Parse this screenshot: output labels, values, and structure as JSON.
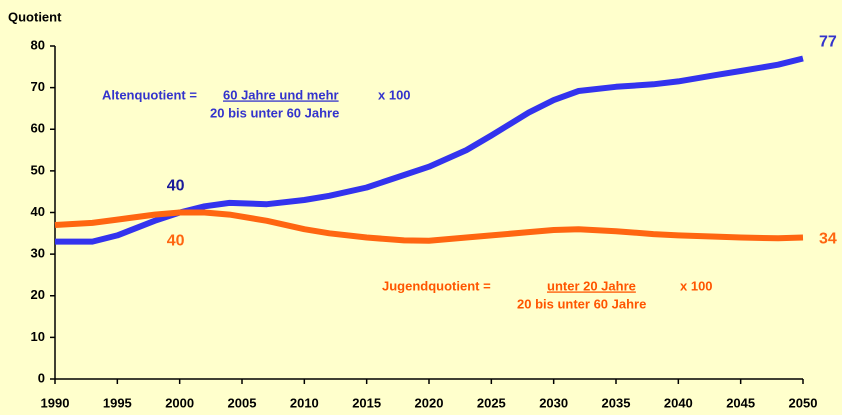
{
  "chart_data": {
    "type": "line",
    "y_axis_label": "Quotient",
    "x": [
      1990,
      1993,
      1995,
      1998,
      2000,
      2002,
      2004,
      2007,
      2010,
      2012,
      2015,
      2018,
      2020,
      2023,
      2025,
      2028,
      2030,
      2032,
      2035,
      2038,
      2040,
      2043,
      2045,
      2048,
      2050
    ],
    "series": [
      {
        "name": "Altenquotient",
        "color": "#3333ee",
        "values": [
          33,
          33,
          34.5,
          38,
          40,
          41.5,
          42.3,
          42,
          43,
          44,
          46,
          49,
          51,
          55,
          58.5,
          64,
          67,
          69.2,
          70.2,
          70.8,
          71.5,
          73,
          74,
          75.5,
          77
        ]
      },
      {
        "name": "Jugendquotient",
        "color": "#ff6611",
        "values": [
          37,
          37.5,
          38.3,
          39.5,
          40,
          40,
          39.5,
          38,
          36,
          35,
          34,
          33.3,
          33.2,
          34,
          34.5,
          35.3,
          35.8,
          36,
          35.5,
          34.8,
          34.5,
          34.2,
          34,
          33.8,
          34
        ]
      }
    ],
    "formulas": [
      {
        "name": "Altenquotient =",
        "numerator": "60 Jahre und mehr",
        "factor": "x 100",
        "denominator": "20 bis unter 60 Jahre"
      },
      {
        "name": "Jugendquotient =",
        "numerator": "unter 20 Jahre",
        "factor": "x 100",
        "denominator": "20 bis unter 60 Jahre"
      }
    ],
    "xlim": [
      1990,
      2050
    ],
    "xticks": [
      1990,
      1995,
      2000,
      2005,
      2010,
      2015,
      2020,
      2025,
      2030,
      2035,
      2040,
      2045,
      2050
    ],
    "ylim": [
      0,
      80
    ],
    "yticks": [
      0,
      10,
      20,
      30,
      40,
      50,
      60,
      70,
      80
    ],
    "grid": false
  }
}
